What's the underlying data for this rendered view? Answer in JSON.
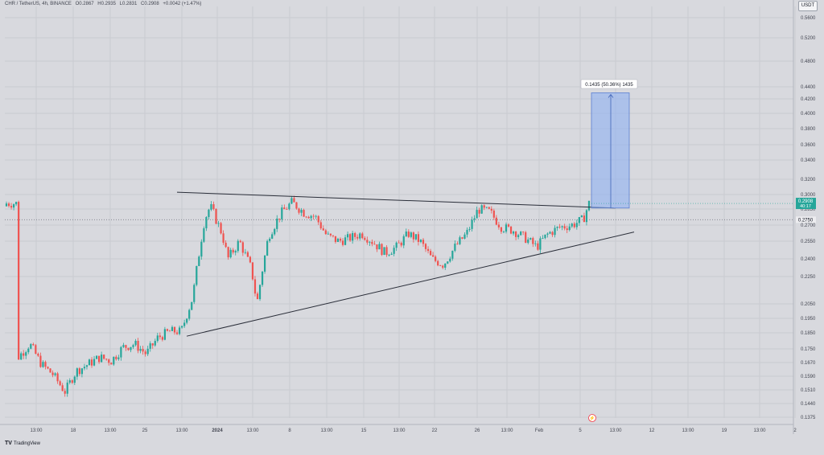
{
  "header": {
    "symbol": "CHR / TetherUS, 4h, BINANCE",
    "open": "O0.2867",
    "high": "H0.2935",
    "low": "L0.2831",
    "close": "C0.2908",
    "change": "+0.0042 (+1.47%)"
  },
  "currency": "USDT",
  "footer": {
    "brand": "TradingView"
  },
  "colors": {
    "background": "#d8d9de",
    "up": "#26a69a",
    "down": "#ef5350",
    "trendline": "#2a2e39",
    "target_box": "#8fb1f2",
    "target_box_border": "#5b7fd1"
  },
  "chart_data": {
    "type": "candlestick",
    "ylim": [
      0.1375,
      0.58
    ],
    "y_ticks": [
      0.56,
      0.52,
      0.48,
      0.44,
      0.42,
      0.4,
      0.38,
      0.36,
      0.34,
      0.32,
      0.3,
      0.285,
      0.27,
      0.255,
      0.24,
      0.225,
      0.205,
      0.195,
      0.185,
      0.175,
      0.167,
      0.159,
      0.151,
      0.144,
      0.1375
    ],
    "y_tick_labels": [
      "0.5600",
      "0.5200",
      "0.4800",
      "0.4400",
      "0.4200",
      "0.4000",
      "0.3800",
      "0.3600",
      "0.3400",
      "0.3200",
      "0.3000",
      "0.2850",
      "0.2700",
      "0.2550",
      "0.2400",
      "0.2250",
      "0.2050",
      "0.1950",
      "0.1850",
      "0.1750",
      "0.1670",
      "0.1590",
      "0.1510",
      "0.1440",
      "0.1375"
    ],
    "x_ticks": [
      "13:00",
      "18",
      "13:00",
      "25",
      "13:00",
      "2024",
      "13:00",
      "8",
      "13:00",
      "15",
      "13:00",
      "22",
      "26",
      "13:00",
      "Feb",
      "5",
      "13:00",
      "12",
      "13:00",
      "19",
      "13:00",
      "2"
    ],
    "current_price": "0.2908",
    "countdown": "40:17",
    "prev_close": "0.2750",
    "measure_label": "0.1435 (50.36%) 1435",
    "price_path": [
      [
        0.155,
        0.158
      ],
      [
        2,
        0.17
      ],
      [
        4,
        0.178
      ],
      [
        6,
        0.166
      ],
      [
        8,
        0.16
      ],
      [
        10,
        0.15
      ],
      [
        12,
        0.162
      ],
      [
        14,
        0.166
      ],
      [
        16,
        0.17
      ],
      [
        18,
        0.168
      ],
      [
        20,
        0.176
      ],
      [
        22,
        0.178
      ],
      [
        24,
        0.172
      ],
      [
        26,
        0.182
      ],
      [
        28,
        0.186
      ],
      [
        30,
        0.186
      ],
      [
        32,
        0.21
      ],
      [
        34,
        0.275
      ],
      [
        35,
        0.288
      ],
      [
        37,
        0.262
      ],
      [
        38,
        0.24
      ],
      [
        40,
        0.255
      ],
      [
        42,
        0.232
      ],
      [
        43,
        0.205
      ],
      [
        45,
        0.26
      ],
      [
        47,
        0.28
      ],
      [
        49,
        0.292
      ],
      [
        51,
        0.282
      ],
      [
        53,
        0.278
      ],
      [
        55,
        0.26
      ],
      [
        57,
        0.255
      ],
      [
        59,
        0.258
      ],
      [
        61,
        0.262
      ],
      [
        63,
        0.254
      ],
      [
        65,
        0.245
      ],
      [
        67,
        0.25
      ],
      [
        69,
        0.262
      ],
      [
        71,
        0.255
      ],
      [
        73,
        0.24
      ],
      [
        75,
        0.235
      ],
      [
        77,
        0.25
      ],
      [
        79,
        0.262
      ],
      [
        81,
        0.285
      ],
      [
        83,
        0.282
      ],
      [
        85,
        0.268
      ],
      [
        87,
        0.265
      ],
      [
        89,
        0.258
      ],
      [
        91,
        0.25
      ],
      [
        93,
        0.262
      ],
      [
        95,
        0.268
      ],
      [
        97,
        0.27
      ],
      [
        99,
        0.275
      ],
      [
        100,
        0.2908
      ]
    ],
    "support_line": {
      "from": [
        0.186,
        "start"
      ],
      "to": [
        0.262,
        "end"
      ]
    },
    "resistance_line": {
      "from": [
        0.303
      ],
      "to": [
        0.286
      ]
    },
    "target": {
      "base": 0.286,
      "top": 0.43
    }
  }
}
